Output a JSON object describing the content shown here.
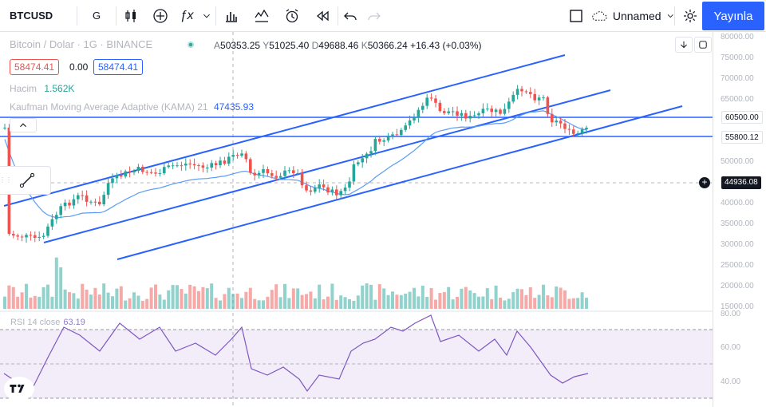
{
  "toolbar": {
    "symbol": "BTCUSD",
    "interval": "G",
    "layout_name": "Unnamed",
    "publish_label": "Yayınla"
  },
  "legend": {
    "title": "Bitcoin / Dolar · 1G · BINANCE",
    "open_label": "A",
    "open": "50353.25",
    "high_label": "Y",
    "high": "51025.40",
    "low_label": "D",
    "low": "49688.46",
    "close_label": "K",
    "close": "50366.24",
    "change": "+16.43 (+0.03%)",
    "sell_price": "58474.41",
    "spread": "0.00",
    "buy_price": "58474.41",
    "volume_label": "Hacim",
    "volume_value": "1.562K",
    "kama_label": "Kaufman Moving Average Adaptive (KAMA) 21",
    "kama_value": "47435.93",
    "rsi_label": "RSI 14 close",
    "rsi_value": "63.19"
  },
  "price_axis": {
    "ticks": [
      "80000.00",
      "75000.00",
      "70000.00",
      "65000.00",
      "60500.00",
      "55800.12",
      "50000.00",
      "44936.08",
      "40000.00",
      "35000.00",
      "30000.00",
      "25000.00",
      "20000.00",
      "15000.00"
    ],
    "highlight_60500": "60500.00",
    "highlight_55800": "55800.12",
    "crosshair_price": "44936.08",
    "rsi_ticks": [
      "80.00",
      "60.00",
      "40.00"
    ]
  },
  "colors": {
    "up": "#26a69a",
    "down": "#ef5350",
    "channel": "#2962ff",
    "kama": "#5b9cf6",
    "rsi_line": "#7e57c2",
    "rsi_band": "#ede7f6",
    "accent": "#2962ff"
  },
  "icons": [
    "search-icon",
    "candles-icon",
    "plus-circle-icon",
    "fx-icon",
    "chevron-down-icon",
    "bar-chart-icon",
    "templates-icon",
    "alarm-icon",
    "replay-icon",
    "undo-icon",
    "redo-icon",
    "fullscreen-icon",
    "cloud-icon",
    "gear-icon",
    "expand-icon",
    "camera-icon",
    "down-arrow-icon",
    "maximize-icon",
    "trend-line-icon",
    "tradingview-logo-icon"
  ]
}
